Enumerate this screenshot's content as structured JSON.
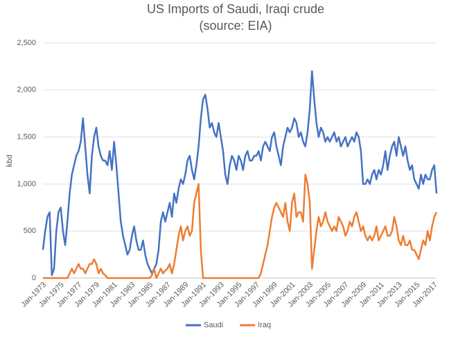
{
  "chart_data": {
    "type": "line",
    "title": "US Imports of Saudi, Iraqi crude",
    "subtitle": "(source: EIA)",
    "y_label": "kbd",
    "ylim": [
      0,
      2500
    ],
    "yticks": [
      0,
      500,
      {
        "value": 1000,
        "label": "1,000"
      },
      {
        "value": 1500,
        "label": "1,500"
      },
      {
        "value": 2000,
        "label": "2,000"
      },
      {
        "value": 2500,
        "label": "2,500"
      }
    ],
    "grid": true,
    "legend": "bottom",
    "categories": [
      "Jan-1973",
      null,
      null,
      null,
      null,
      null,
      null,
      null,
      "Jan-1975",
      null,
      null,
      null,
      null,
      null,
      null,
      null,
      "Jan-1977",
      null,
      null,
      null,
      null,
      null,
      null,
      null,
      "Jan-1979",
      null,
      null,
      null,
      null,
      null,
      null,
      null,
      "Jan-1981",
      null,
      null,
      null,
      null,
      null,
      null,
      null,
      "Jan-1983",
      null,
      null,
      null,
      null,
      null,
      null,
      null,
      "Jan-1985",
      null,
      null,
      null,
      null,
      null,
      null,
      null,
      "Jan-1987",
      null,
      null,
      null,
      null,
      null,
      null,
      null,
      "Jan-1989",
      null,
      null,
      null,
      null,
      null,
      null,
      null,
      "Jan-1991",
      null,
      null,
      null,
      null,
      null,
      null,
      null,
      "Jan-1993",
      null,
      null,
      null,
      null,
      null,
      null,
      null,
      "Jan-1995",
      null,
      null,
      null,
      null,
      null,
      null,
      null,
      "Jan-1997",
      null,
      null,
      null,
      null,
      null,
      null,
      null,
      "Jan-1999",
      null,
      null,
      null,
      null,
      null,
      null,
      null,
      "Jan-2001",
      null,
      null,
      null,
      null,
      null,
      null,
      null,
      "Jan-2003",
      null,
      null,
      null,
      null,
      null,
      null,
      null,
      "Jan-2005",
      null,
      null,
      null,
      null,
      null,
      null,
      null,
      "Jan-2007",
      null,
      null,
      null,
      null,
      null,
      null,
      null,
      "Jan-2009",
      null,
      null,
      null,
      null,
      null,
      null,
      null,
      "Jan-2011",
      null,
      null,
      null,
      null,
      null,
      null,
      null,
      "Jan-2013",
      null,
      null,
      null,
      null,
      null,
      null,
      null,
      "Jan-2015",
      null,
      null,
      null,
      null,
      null,
      null,
      null,
      "Jan-2017",
      null
    ],
    "series": [
      {
        "name": "Saudi",
        "color": "#4472c4",
        "values": [
          300,
          500,
          650,
          700,
          30,
          100,
          500,
          700,
          750,
          500,
          350,
          600,
          900,
          1100,
          1200,
          1300,
          1350,
          1450,
          1700,
          1400,
          1100,
          900,
          1300,
          1500,
          1600,
          1400,
          1300,
          1250,
          1250,
          1200,
          1350,
          1150,
          1450,
          1200,
          900,
          600,
          450,
          350,
          250,
          300,
          450,
          550,
          400,
          300,
          300,
          400,
          250,
          150,
          100,
          50,
          100,
          150,
          300,
          600,
          700,
          600,
          700,
          800,
          650,
          900,
          800,
          950,
          1050,
          1000,
          1100,
          1250,
          1300,
          1150,
          1050,
          1200,
          1400,
          1700,
          1900,
          1950,
          1800,
          1600,
          1650,
          1550,
          1500,
          1650,
          1500,
          1350,
          1100,
          1000,
          1200,
          1300,
          1250,
          1150,
          1300,
          1250,
          1150,
          1300,
          1350,
          1250,
          1250,
          1300,
          1300,
          1350,
          1250,
          1400,
          1450,
          1400,
          1350,
          1500,
          1550,
          1400,
          1300,
          1200,
          1400,
          1500,
          1600,
          1550,
          1600,
          1700,
          1650,
          1500,
          1550,
          1450,
          1400,
          1550,
          1800,
          2200,
          1900,
          1650,
          1500,
          1600,
          1550,
          1450,
          1500,
          1450,
          1500,
          1550,
          1450,
          1500,
          1400,
          1450,
          1500,
          1400,
          1450,
          1500,
          1450,
          1550,
          1500,
          1350,
          1000,
          1000,
          1050,
          1000,
          1100,
          1150,
          1050,
          1150,
          1100,
          1200,
          1350,
          1150,
          1300,
          1400,
          1450,
          1300,
          1500,
          1400,
          1300,
          1400,
          1250,
          1150,
          1200,
          1050,
          1000,
          950,
          1100,
          1000,
          1100,
          1050,
          1050,
          1150,
          1200,
          900
        ]
      },
      {
        "name": "Iraq",
        "color": "#ed7d31",
        "values": [
          0,
          0,
          0,
          0,
          0,
          0,
          0,
          0,
          0,
          0,
          0,
          0,
          50,
          100,
          50,
          100,
          150,
          100,
          100,
          50,
          100,
          150,
          150,
          200,
          150,
          50,
          100,
          50,
          30,
          0,
          0,
          0,
          0,
          0,
          0,
          0,
          0,
          0,
          0,
          0,
          0,
          0,
          0,
          0,
          0,
          0,
          0,
          0,
          0,
          30,
          100,
          0,
          50,
          100,
          50,
          80,
          100,
          150,
          50,
          150,
          300,
          450,
          550,
          400,
          500,
          550,
          450,
          500,
          800,
          900,
          1000,
          300,
          0,
          0,
          0,
          0,
          0,
          0,
          0,
          0,
          0,
          0,
          0,
          0,
          0,
          0,
          0,
          0,
          0,
          0,
          0,
          0,
          0,
          0,
          0,
          0,
          0,
          0,
          50,
          150,
          250,
          350,
          500,
          650,
          750,
          800,
          750,
          700,
          650,
          800,
          600,
          500,
          800,
          900,
          650,
          700,
          700,
          600,
          1100,
          1000,
          800,
          100,
          300,
          500,
          650,
          550,
          600,
          700,
          600,
          550,
          500,
          550,
          500,
          650,
          600,
          550,
          450,
          500,
          600,
          550,
          650,
          700,
          600,
          500,
          550,
          450,
          400,
          450,
          400,
          450,
          550,
          400,
          450,
          500,
          550,
          450,
          450,
          500,
          650,
          550,
          400,
          350,
          450,
          350,
          350,
          400,
          300,
          300,
          250,
          200,
          300,
          400,
          350,
          500,
          400,
          550,
          650,
          700
        ]
      }
    ]
  }
}
